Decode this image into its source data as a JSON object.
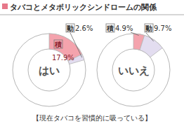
{
  "chart_data": {
    "type": "donut",
    "title": "タバコとメタボリックシンドロームの関係",
    "annotations": [
      "【現在タバコを習慣的に吸っている】"
    ],
    "categories": [
      "はい",
      "いいえ"
    ],
    "series": [
      {
        "name": "積",
        "color": "#f4a3ad",
        "values": [
          17.9,
          4.9
        ],
        "value_labels": [
          "17.9%",
          "4.9%"
        ]
      },
      {
        "name": "動",
        "color": "#e3ddf0",
        "values": [
          2.6,
          9.7
        ],
        "value_labels": [
          "2.6%",
          "9.7%"
        ]
      }
    ],
    "data_labels": true
  }
}
